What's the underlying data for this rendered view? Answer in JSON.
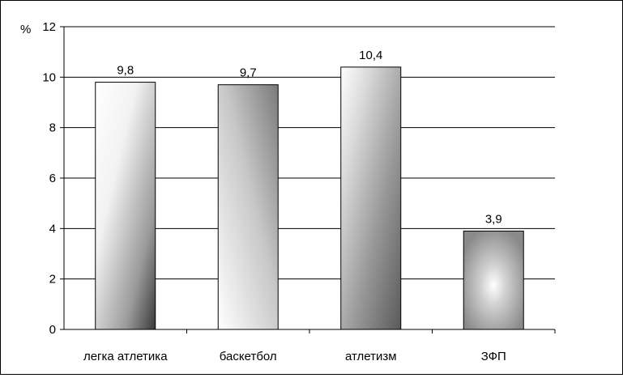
{
  "chart_data": {
    "type": "bar",
    "unit_label": "%",
    "categories": [
      "легка атлетика",
      "баскетбол",
      "атлетизм",
      "ЗФП"
    ],
    "values": [
      9.8,
      9.7,
      10.4,
      3.9
    ],
    "value_labels": [
      "9,8",
      "9,7",
      "10,4",
      "3,9"
    ],
    "ylim": [
      0,
      12
    ],
    "yticks": [
      0,
      2,
      4,
      6,
      8,
      10,
      12
    ],
    "ytick_labels": [
      "0",
      "2",
      "4",
      "6",
      "8",
      "10",
      "12"
    ],
    "grid": true,
    "legend": "none",
    "colors": {
      "axis": "#000000",
      "grid": "#000000",
      "bar_outline": "#000000"
    }
  }
}
